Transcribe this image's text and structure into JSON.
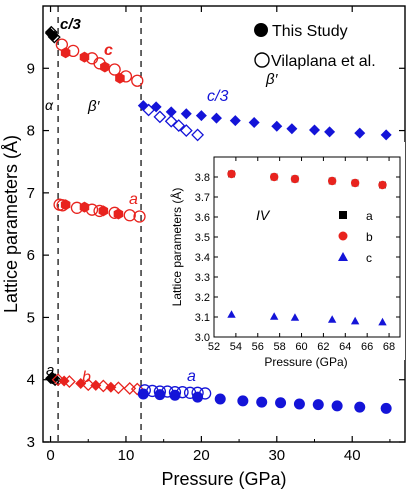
{
  "chart_data": [
    {
      "type": "scatter",
      "xlabel": "Pressure (GPa)",
      "ylabel": "Lattice parameters (Å)",
      "xlim": [
        -1,
        47
      ],
      "ylim": [
        3,
        10
      ],
      "xticks": [
        0,
        10,
        20,
        30,
        40
      ],
      "yticks": [
        3,
        4,
        5,
        6,
        7,
        8,
        9
      ],
      "grid": false,
      "legend": {
        "placement": "top-right",
        "entries": [
          {
            "label": "This Study",
            "marker": "filled-circle"
          },
          {
            "label": "Vilaplana et al.",
            "marker": "open-circle"
          }
        ]
      },
      "phase_boundaries_x": [
        1.0,
        12.0
      ],
      "phase_labels": [
        "α",
        "β′",
        "β′"
      ],
      "annotations": [
        "c/3",
        "c",
        "c/3",
        "a",
        "a",
        "b",
        "a"
      ],
      "colors": {
        "alpha": "#000000",
        "beta": "#e8231e",
        "high": "#1414d8"
      },
      "series": [
        {
          "param": "c/3",
          "phase": "alpha",
          "source": "this",
          "marker": "diamond",
          "color": "#000000",
          "x": [
            0.0,
            0.3
          ],
          "y": [
            9.56,
            9.52
          ]
        },
        {
          "param": "c/3",
          "phase": "alpha",
          "source": "vilaplana",
          "marker": "diamond-open",
          "color": "#000000",
          "x": [
            0.1,
            0.5
          ],
          "y": [
            9.58,
            9.5
          ]
        },
        {
          "param": "a",
          "phase": "alpha",
          "source": "this",
          "marker": "diamond",
          "color": "#000000",
          "x": [
            0.0,
            0.4
          ],
          "y": [
            4.02,
            4.01
          ]
        },
        {
          "param": "a",
          "phase": "alpha",
          "source": "vilaplana",
          "marker": "diamond-open",
          "color": "#000000",
          "x": [
            0.2,
            0.6
          ],
          "y": [
            4.03,
            4.0
          ]
        },
        {
          "param": "c",
          "phase": "beta",
          "source": "this",
          "marker": "hexagon",
          "color": "#e8231e",
          "x": [
            2.0,
            4.5,
            7.2,
            9.2
          ],
          "y": [
            9.25,
            9.18,
            9.02,
            8.84
          ]
        },
        {
          "param": "c",
          "phase": "beta",
          "source": "vilaplana",
          "marker": "circle-open",
          "color": "#e8231e",
          "x": [
            1.5,
            3.0,
            5.5,
            6.5,
            8.5,
            10.0,
            11.5
          ],
          "y": [
            9.38,
            9.28,
            9.16,
            9.08,
            8.98,
            8.87,
            8.8
          ]
        },
        {
          "param": "a",
          "phase": "beta",
          "source": "this",
          "marker": "hexagon",
          "color": "#e8231e",
          "x": [
            2.0,
            4.5,
            7.0,
            9.0
          ],
          "y": [
            6.81,
            6.77,
            6.71,
            6.66
          ]
        },
        {
          "param": "a",
          "phase": "beta",
          "source": "vilaplana",
          "marker": "circle-open",
          "color": "#e8231e",
          "x": [
            1.2,
            1.6,
            3.5,
            5.5,
            6.5,
            8.5,
            10.5,
            11.8
          ],
          "y": [
            6.81,
            6.8,
            6.76,
            6.73,
            6.71,
            6.68,
            6.64,
            6.62
          ]
        },
        {
          "param": "b",
          "phase": "beta",
          "source": "this",
          "marker": "diamond",
          "color": "#e8231e",
          "x": [
            1.8,
            4.0,
            6.0,
            8.0
          ],
          "y": [
            3.98,
            3.94,
            3.91,
            3.88
          ]
        },
        {
          "param": "b",
          "phase": "beta",
          "source": "vilaplana",
          "marker": "diamond-open",
          "color": "#e8231e",
          "x": [
            1.0,
            2.5,
            5.0,
            7.0,
            9.0,
            10.5,
            11.5
          ],
          "y": [
            4.0,
            3.97,
            3.92,
            3.9,
            3.87,
            3.86,
            3.85
          ]
        },
        {
          "param": "c/3",
          "phase": "high",
          "source": "this",
          "marker": "diamond",
          "color": "#1414d8",
          "x": [
            12.3,
            14.0,
            16.0,
            18.0,
            20.0,
            22.0,
            24.5,
            27.0,
            30.0,
            32.0,
            35.0,
            37.0,
            41.0,
            44.5
          ],
          "y": [
            8.4,
            8.38,
            8.3,
            8.27,
            8.24,
            8.2,
            8.16,
            8.13,
            8.07,
            8.03,
            8.01,
            7.98,
            7.96,
            7.93
          ]
        },
        {
          "param": "c/3",
          "phase": "high",
          "source": "vilaplana",
          "marker": "diamond-open",
          "color": "#1414d8",
          "x": [
            13.0,
            14.5,
            16.0,
            17.0,
            18.0,
            19.5
          ],
          "y": [
            8.33,
            8.22,
            8.15,
            8.08,
            8.0,
            7.93
          ]
        },
        {
          "param": "a",
          "phase": "high",
          "source": "this",
          "marker": "circle",
          "color": "#1414d8",
          "x": [
            12.3,
            14.5,
            16.5,
            19.5,
            22.5,
            25.5,
            28.0,
            30.5,
            33.0,
            35.5,
            38.0,
            41.0,
            44.5
          ],
          "y": [
            3.77,
            3.76,
            3.75,
            3.72,
            3.69,
            3.66,
            3.64,
            3.63,
            3.61,
            3.6,
            3.58,
            3.56,
            3.54
          ]
        },
        {
          "param": "a",
          "phase": "high",
          "source": "vilaplana",
          "marker": "circle-open",
          "color": "#1414d8",
          "x": [
            12.5,
            13.5,
            14.5,
            15.5,
            16.5,
            17.5,
            18.5,
            19.5,
            20.5
          ],
          "y": [
            3.83,
            3.82,
            3.81,
            3.81,
            3.8,
            3.8,
            3.79,
            3.79,
            3.78
          ]
        }
      ]
    },
    {
      "type": "scatter",
      "xlabel": "Pressure (GPa)",
      "ylabel": "Lattice parameters (Å)",
      "xlim": [
        52,
        69
      ],
      "ylim": [
        3.0,
        3.9
      ],
      "xticks": [
        52,
        54,
        56,
        58,
        60,
        62,
        64,
        66,
        68
      ],
      "yticks": [
        3.0,
        3.1,
        3.2,
        3.3,
        3.4,
        3.5,
        3.6,
        3.7,
        3.8
      ],
      "grid": false,
      "phase_label": "IV",
      "legend": {
        "placement": "right",
        "entries": [
          "a",
          "b",
          "c"
        ]
      },
      "series": [
        {
          "name": "a",
          "marker": "square",
          "color": "#000000",
          "x": [
            53.6,
            57.5,
            59.4,
            62.8,
            64.9,
            67.4
          ],
          "y": [
            3.815,
            3.8,
            3.79,
            3.78,
            3.77,
            3.76
          ]
        },
        {
          "name": "b",
          "marker": "circle",
          "color": "#e8231e",
          "x": [
            53.6,
            57.5,
            59.4,
            62.8,
            64.9,
            67.4
          ],
          "y": [
            3.815,
            3.8,
            3.79,
            3.78,
            3.77,
            3.76
          ]
        },
        {
          "name": "c",
          "marker": "triangle",
          "color": "#1414d8",
          "x": [
            53.6,
            57.5,
            59.4,
            62.8,
            64.9,
            67.4
          ],
          "y": [
            3.113,
            3.103,
            3.098,
            3.088,
            3.08,
            3.075
          ]
        }
      ]
    }
  ]
}
